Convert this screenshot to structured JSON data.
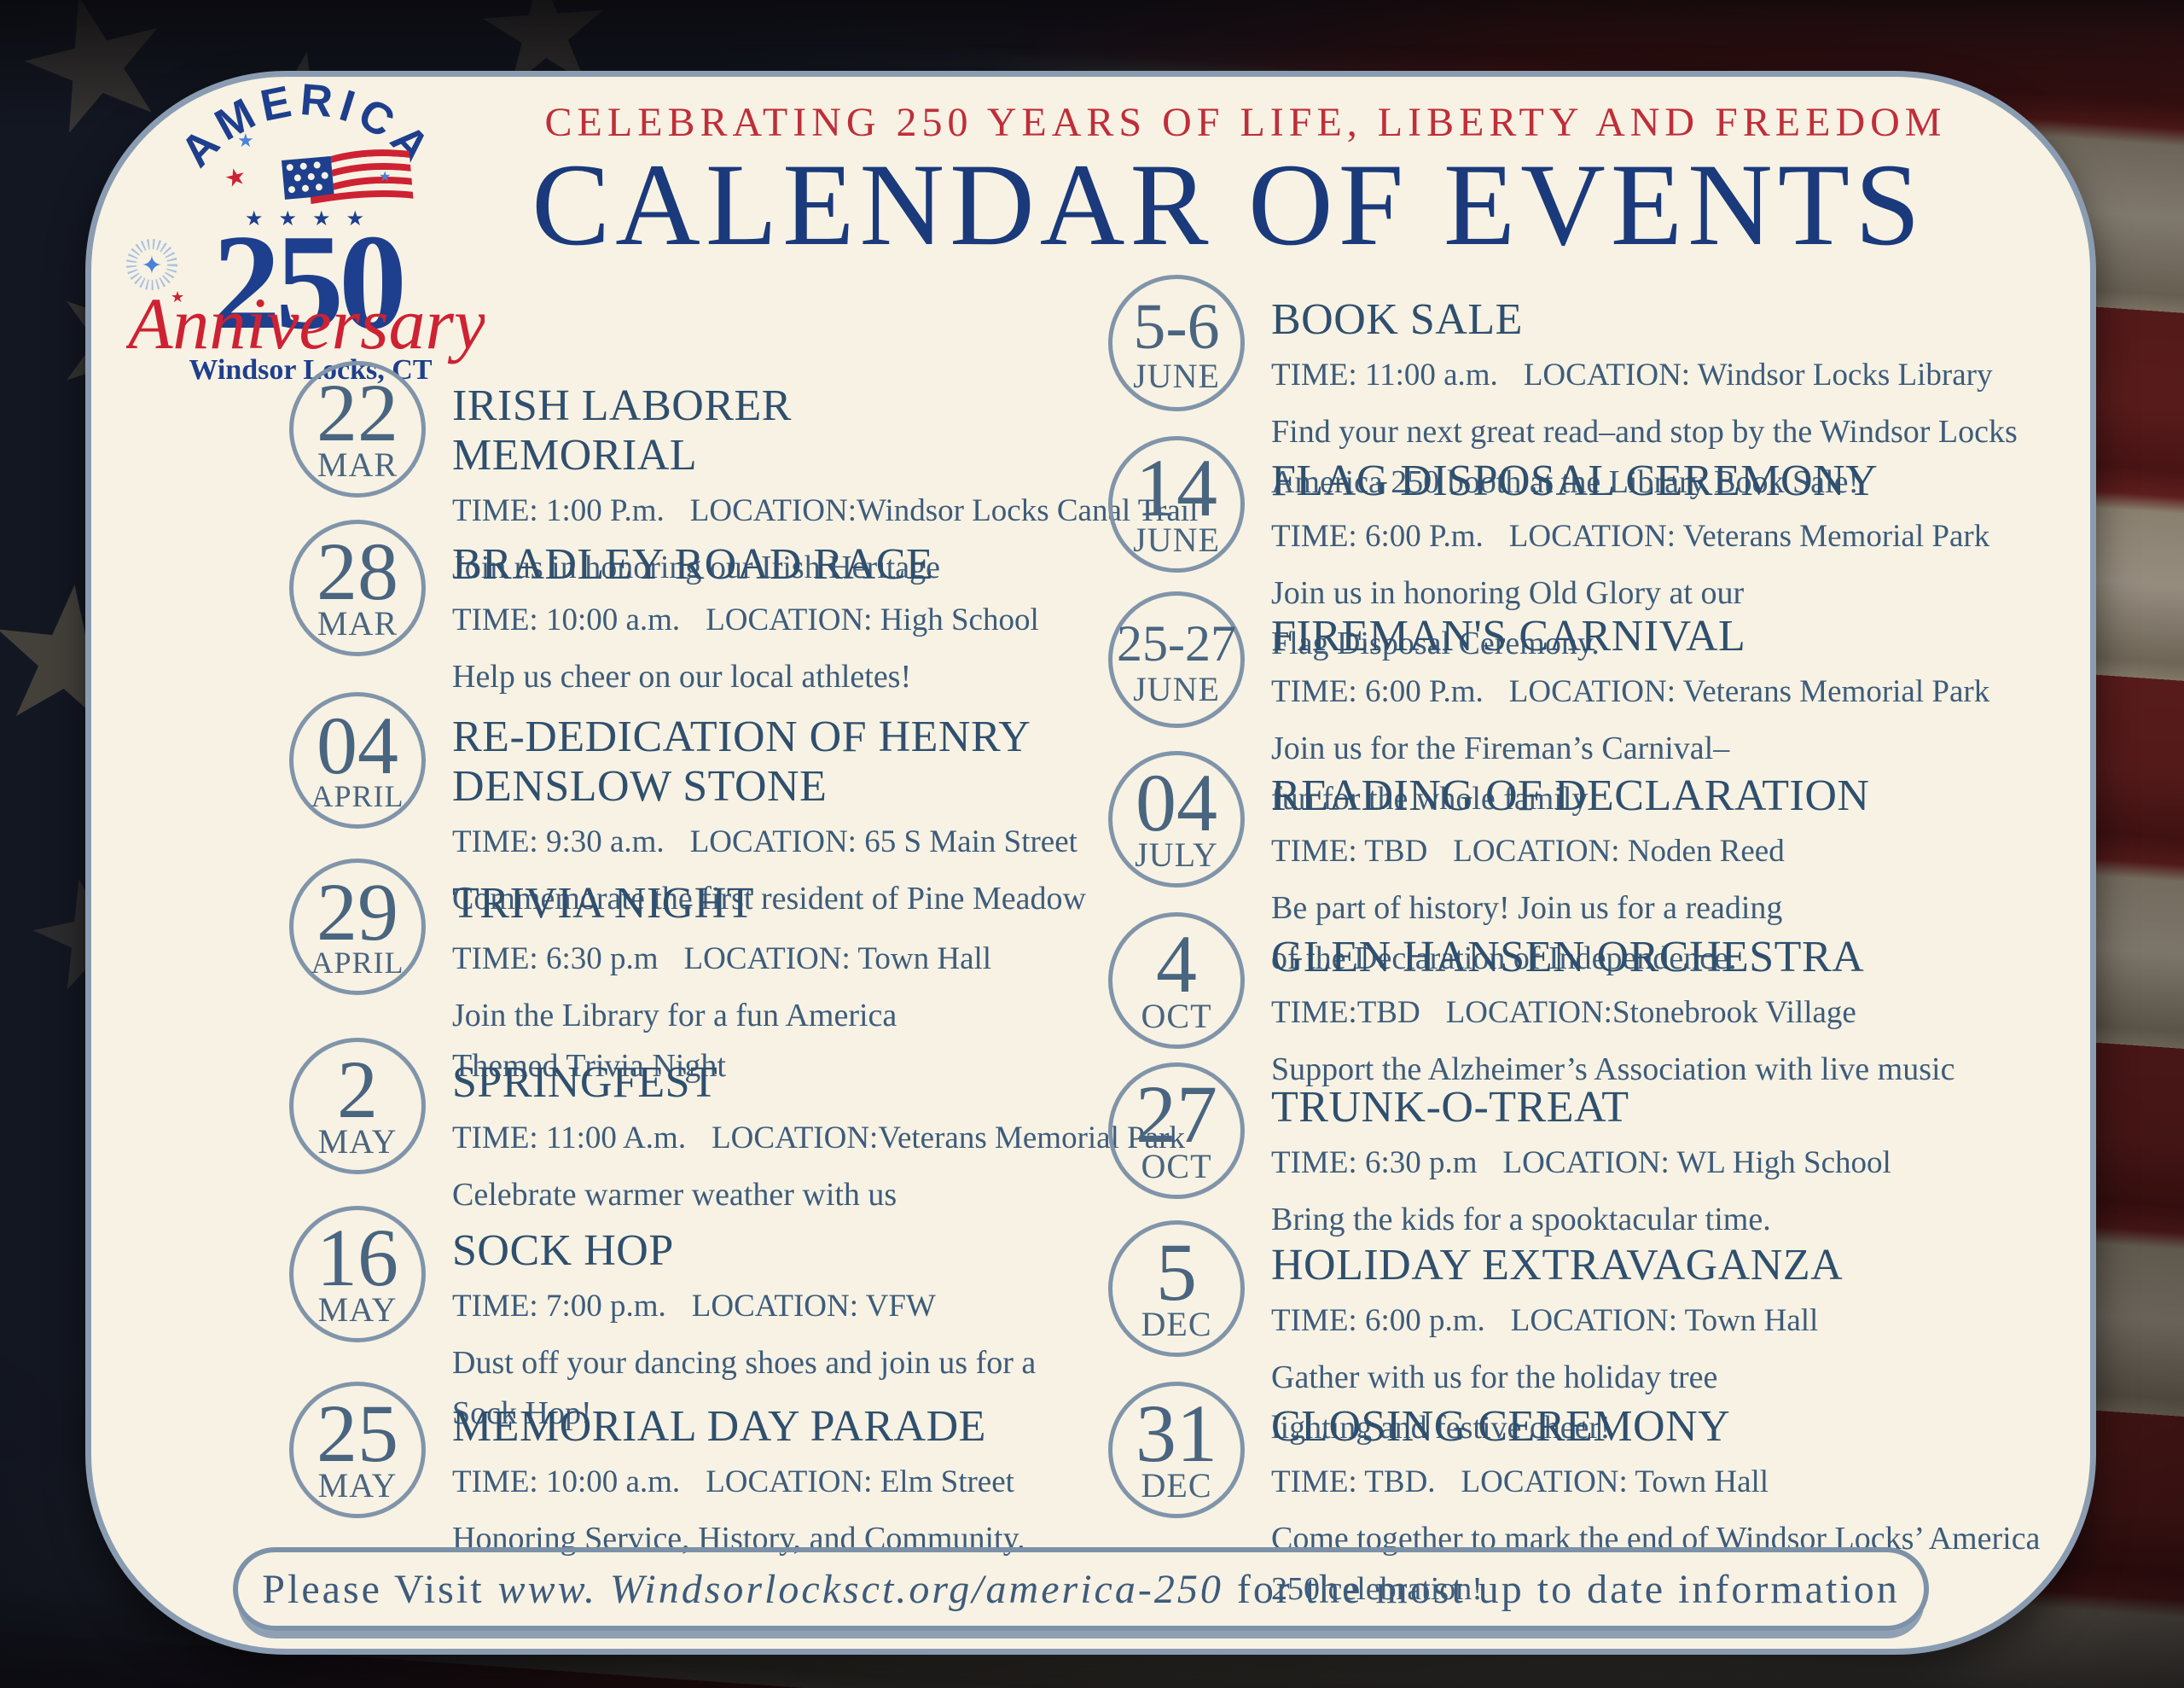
{
  "header": {
    "tagline": "CELEBRATING 250 YEARS OF LIFE, LIBERTY AND FREEDOM",
    "title": "CALENDAR OF EVENTS"
  },
  "logo": {
    "arch": "AMERICA",
    "stars": "★ ★ ★ ★",
    "number": "250",
    "script": "Anniversary",
    "city": "Windsor Locks, CT",
    "flag_icon": "american-flag-icon",
    "starburst_icon": "blue-starburst-icon"
  },
  "columns": [
    {
      "side": "left",
      "events": [
        {
          "day": "22",
          "month": "MAR",
          "title": "IRISH LABORER MEMORIAL",
          "time": "TIME: 1:00 P.m.",
          "location": "LOCATION:Windsor Locks Canal Trail",
          "desc": [
            "Join us in honoring our Irish Heritage"
          ]
        },
        {
          "day": "28",
          "month": "MAR",
          "title": "BRADLEY ROAD RACE",
          "time": "TIME: 10:00 a.m.",
          "location": "LOCATION: High School",
          "desc": [
            "Help us cheer on our local athletes!"
          ]
        },
        {
          "day": "04",
          "month": "APRIL",
          "title": "RE-DEDICATION OF HENRY DENSLOW STONE",
          "time": "TIME: 9:30 a.m.",
          "location": "LOCATION: 65 S Main Street",
          "desc": [
            "Commemorate the first resident of Pine Meadow"
          ]
        },
        {
          "day": "29",
          "month": "APRIL",
          "title": "TRIVIA NIGHT",
          "time": "TIME: 6:30 p.m",
          "location": "LOCATION: Town Hall",
          "desc": [
            "Join the Library for a fun America",
            "Themed Trivia Night"
          ]
        },
        {
          "day": "2",
          "month": "MAY",
          "title": "SPRINGFEST",
          "time": "TIME: 11:00 A.m.",
          "location": "LOCATION:Veterans Memorial Park",
          "desc": [
            "Celebrate warmer weather with us"
          ]
        },
        {
          "day": "16",
          "month": "MAY",
          "title": "SOCK HOP",
          "time": "TIME: 7:00 p.m.",
          "location": "LOCATION: VFW",
          "desc": [
            "Dust off your dancing shoes and join us for a Sock Hop!"
          ]
        },
        {
          "day": "25",
          "month": "MAY",
          "title": "MEMORIAL DAY PARADE",
          "time": "TIME: 10:00 a.m.",
          "location": "LOCATION: Elm Street",
          "desc": [
            "Honoring Service, History, and Community."
          ]
        }
      ]
    },
    {
      "side": "right",
      "events": [
        {
          "day": "5-6",
          "month": "JUNE",
          "title": "BOOK SALE",
          "time": "TIME: 11:00 a.m.",
          "location": "LOCATION: Windsor Locks Library",
          "desc": [
            "Find your next great read–and stop by the Windsor Locks",
            "America 250 booth at the Library Book Sale!"
          ]
        },
        {
          "day": "14",
          "month": "JUNE",
          "title": "FLAG DISPOSAL CEREMONY",
          "time": "TIME: 6:00 P.m.",
          "location": "LOCATION: Veterans  Memorial Park",
          "desc": [
            "Join us in honoring Old Glory at our",
            "Flag Disposal Ceremony."
          ]
        },
        {
          "day": "25-27",
          "month": "JUNE",
          "title": "FIREMAN'S CARNIVAL",
          "time": "TIME: 6:00 P.m.",
          "location": "LOCATION: Veterans Memorial Park",
          "desc": [
            "Join us for the Fireman’s Carnival–",
            "fun for the whole family!"
          ]
        },
        {
          "day": "04",
          "month": "JULY",
          "title": "READING OF DECLARATION",
          "time": "TIME: TBD",
          "location": "LOCATION:  Noden Reed",
          "desc": [
            "Be part of history! Join us for a reading",
            "of the Declaration of Independence."
          ]
        },
        {
          "day": "4",
          "month": "OCT",
          "title": "GLEN HANSEN ORCHESTRA",
          "time": "TIME:TBD",
          "location": "LOCATION:Stonebrook Village",
          "desc": [
            "Support the Alzheimer’s Association with live music"
          ]
        },
        {
          "day": "27",
          "month": "OCT",
          "title": "TRUNK-O-TREAT",
          "time": "TIME: 6:30 p.m",
          "location": "LOCATION: WL High School",
          "desc": [
            "Bring the kids for a spooktacular time."
          ]
        },
        {
          "day": "5",
          "month": "DEC",
          "title": "HOLIDAY EXTRAVAGANZA",
          "time": "TIME: 6:00 p.m.",
          "location": "LOCATION: Town Hall",
          "desc": [
            "Gather with us for the holiday tree",
            "lighting and festive cheer!"
          ]
        },
        {
          "day": "31",
          "month": "DEC",
          "title": "CLOSING CEREMONY",
          "time": "TIME: TBD.",
          "location": "LOCATION: Town Hall",
          "desc": [
            "Come together to mark the end of Windsor Locks’ America 250 celebration!"
          ]
        }
      ]
    }
  ],
  "footer": {
    "prefix": "Please Visit",
    "link": "www. Windsorlocksct.org/america-250",
    "suffix": "for the most up to date information"
  },
  "colors": {
    "card_bg": "#f7f2e3",
    "card_border": "#8a9cb1",
    "title_navy": "#1a3a7c",
    "tagline_red": "#bf2e39",
    "event_title": "#2f4f6e",
    "body_text": "#3d5c7c",
    "circle_border": "#8094aa",
    "logo_navy": "#1e3f8e",
    "logo_red": "#ce2233"
  }
}
